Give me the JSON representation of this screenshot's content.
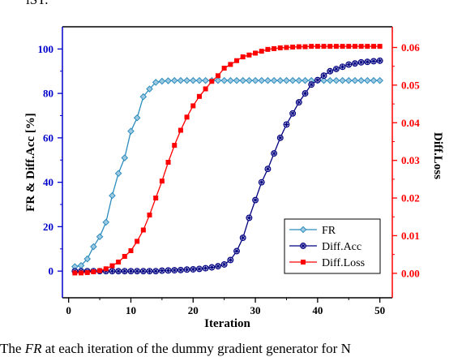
{
  "page": {
    "top_fragment": "iST.",
    "caption_prefix": "The ",
    "caption_italic": "FR",
    "caption_suffix": " at each iteration of the dummy gradient generator for N"
  },
  "chart_data": {
    "type": "line",
    "xlabel": "Iteration",
    "ylabel_left": "FR & Diff.Acc [%]",
    "ylabel_right": "Diff.Loss",
    "xlim": [
      -1,
      52
    ],
    "ylim_left": [
      -12,
      110
    ],
    "ylim_right": [
      -0.0065,
      0.0655
    ],
    "xticks": [
      0,
      10,
      20,
      30,
      40,
      50
    ],
    "yticks_left": [
      0,
      20,
      40,
      60,
      80,
      100
    ],
    "yticks_right": [
      0.0,
      0.01,
      0.02,
      0.03,
      0.04,
      0.05,
      0.06
    ],
    "grid": false,
    "legend_position": "bottom-right",
    "colors": {
      "left_axis": "#0000cc",
      "right_axis": "#ff0000",
      "fr": "#2b8cbe",
      "diff_acc": "#000080",
      "diff_loss": "#ff0000"
    },
    "series": [
      {
        "name": "FR",
        "axis": "left",
        "marker": "diamond",
        "x": [
          1,
          2,
          3,
          4,
          5,
          6,
          7,
          8,
          9,
          10,
          11,
          12,
          13,
          14,
          15,
          16,
          17,
          18,
          19,
          20,
          21,
          22,
          23,
          24,
          25,
          26,
          27,
          28,
          29,
          30,
          31,
          32,
          33,
          34,
          35,
          36,
          37,
          38,
          39,
          40,
          41,
          42,
          43,
          44,
          45,
          46,
          47,
          48,
          49,
          50
        ],
        "values": [
          2,
          2.5,
          5.5,
          11,
          15.5,
          22,
          34,
          44,
          51,
          63,
          69,
          78.5,
          82,
          85,
          85.5,
          85.7,
          85.8,
          85.8,
          85.8,
          85.8,
          85.8,
          85.8,
          85.8,
          85.8,
          85.8,
          85.8,
          85.8,
          85.8,
          85.8,
          85.8,
          85.8,
          85.8,
          85.8,
          85.8,
          85.8,
          85.8,
          85.8,
          85.8,
          85.8,
          85.8,
          85.8,
          85.8,
          85.8,
          85.8,
          85.8,
          85.8,
          85.8,
          85.8,
          85.8,
          85.8
        ]
      },
      {
        "name": "Diff.Acc",
        "axis": "left",
        "marker": "star",
        "x": [
          1,
          2,
          3,
          4,
          5,
          6,
          7,
          8,
          9,
          10,
          11,
          12,
          13,
          14,
          15,
          16,
          17,
          18,
          19,
          20,
          21,
          22,
          23,
          24,
          25,
          26,
          27,
          28,
          29,
          30,
          31,
          32,
          33,
          34,
          35,
          36,
          37,
          38,
          39,
          40,
          41,
          42,
          43,
          44,
          45,
          46,
          47,
          48,
          49,
          50
        ],
        "values": [
          0,
          0,
          0,
          0,
          0,
          0,
          0,
          0,
          0,
          0,
          0,
          0,
          0,
          0,
          0.2,
          0.3,
          0.4,
          0.5,
          0.7,
          0.8,
          1,
          1.3,
          1.7,
          2.2,
          3,
          5,
          9,
          15,
          24,
          32,
          40,
          46,
          53,
          60,
          66,
          71,
          76,
          80,
          84,
          86,
          88,
          90,
          91,
          92,
          93,
          93.5,
          94,
          94.2,
          94.5,
          94.7
        ]
      },
      {
        "name": "Diff.Loss",
        "axis": "right",
        "marker": "square",
        "x": [
          1,
          2,
          3,
          4,
          5,
          6,
          7,
          8,
          9,
          10,
          11,
          12,
          13,
          14,
          15,
          16,
          17,
          18,
          19,
          20,
          21,
          22,
          23,
          24,
          25,
          26,
          27,
          28,
          29,
          30,
          31,
          32,
          33,
          34,
          35,
          36,
          37,
          38,
          39,
          40,
          41,
          42,
          43,
          44,
          45,
          46,
          47,
          48,
          49,
          50
        ],
        "values": [
          0.0001,
          0.0001,
          0.0002,
          0.0004,
          0.0007,
          0.0012,
          0.002,
          0.003,
          0.0045,
          0.006,
          0.0085,
          0.0115,
          0.0155,
          0.02,
          0.0245,
          0.0295,
          0.034,
          0.038,
          0.0415,
          0.0445,
          0.047,
          0.049,
          0.051,
          0.0525,
          0.0545,
          0.0555,
          0.0565,
          0.0575,
          0.058,
          0.0585,
          0.059,
          0.0595,
          0.0597,
          0.0599,
          0.06,
          0.0601,
          0.0602,
          0.0602,
          0.0603,
          0.0603,
          0.0603,
          0.0603,
          0.0603,
          0.0603,
          0.0603,
          0.0603,
          0.0603,
          0.0603,
          0.0603,
          0.0603
        ]
      }
    ]
  }
}
